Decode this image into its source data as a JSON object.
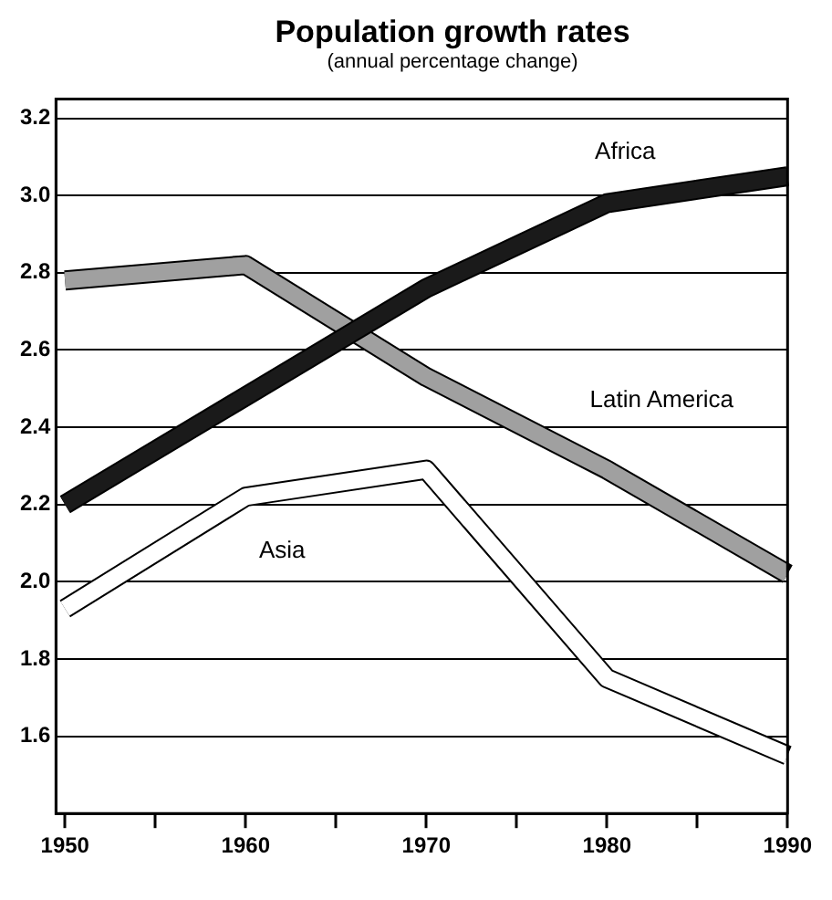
{
  "chart_data": {
    "type": "line",
    "title": "Population growth rates",
    "subtitle": "(annual percentage change)",
    "x": [
      1950,
      1960,
      1970,
      1980,
      1990
    ],
    "series": [
      {
        "name": "Africa",
        "color": "#1a1a1a",
        "values": [
          2.2,
          2.48,
          2.76,
          2.98,
          3.05
        ]
      },
      {
        "name": "Latin America",
        "color": "#a0a0a0",
        "values": [
          2.78,
          2.82,
          2.53,
          2.29,
          2.02
        ]
      },
      {
        "name": "Asia",
        "color": "#ffffff",
        "values": [
          1.93,
          2.22,
          2.29,
          1.75,
          1.55
        ]
      }
    ],
    "xlim": [
      1949.5,
      1990
    ],
    "xticks": [
      1950,
      {
        "value": 1955,
        "label": null
      },
      1960,
      {
        "value": 1965,
        "label": null
      },
      1970,
      {
        "value": 1975,
        "label": null
      },
      1980,
      {
        "value": 1985,
        "label": null
      },
      1990
    ],
    "ylim": [
      1.4,
      3.25
    ],
    "yticks": [
      1.6,
      1.8,
      {
        "value": 2,
        "label": "2.0"
      },
      2.2,
      2.4,
      2.6,
      2.8,
      {
        "value": 3,
        "label": "3.0"
      },
      3.2
    ],
    "grid": "y",
    "legend": false,
    "marker": "none",
    "line_style": "solid"
  }
}
